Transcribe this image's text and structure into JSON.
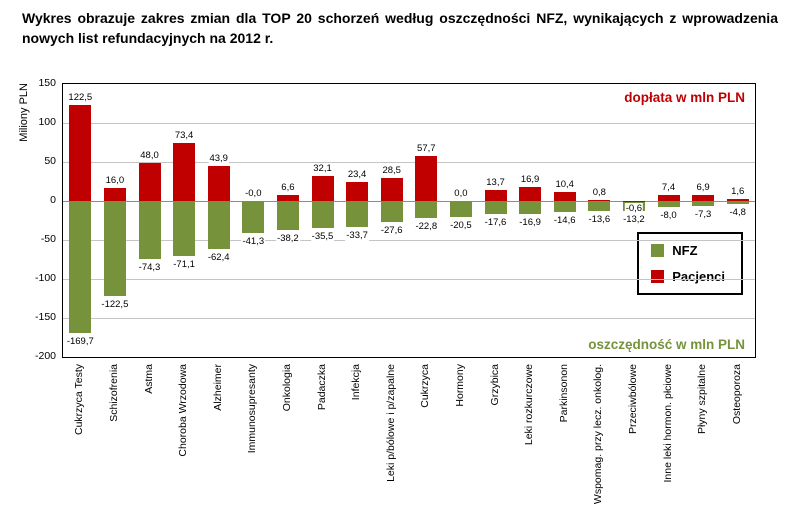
{
  "title": "Wykres obrazuje zakres zmian dla TOP 20 schorzeń według oszczędności NFZ, wynikających z wprowadzenia nowych list refundacyjnych na 2012 r.",
  "chart_data": {
    "type": "bar",
    "title": "Wykres obrazuje zakres zmian dla TOP 20 schorzeń według oszczędności NFZ, wynikających z wprowadzenia nowych list refundacyjnych na 2012 r.",
    "ylabel": "Miliony PLN",
    "ylim": [
      -200,
      150
    ],
    "ytick_step": 50,
    "grid": true,
    "legend_position": "right-middle",
    "annotations": {
      "top_right": "dopłata w mln PLN",
      "bottom_right": "oszczędność w mln PLN"
    },
    "legend": [
      {
        "name": "NFZ",
        "color": "#76933C"
      },
      {
        "name": "Pacjenci",
        "color": "#C00000"
      }
    ],
    "categories": [
      "Cukrzyca Testy",
      "Schizofrenia",
      "Astma",
      "Choroba Wrzodowa",
      "Alzheimer",
      "Immunosupresanty",
      "Onkologia",
      "Padaczka",
      "Infekcja",
      "Leki p/bólowe i p/zapalne",
      "Cukrzyca",
      "Hormony",
      "Grzybica",
      "Leki rozkurczowe",
      "Parkinsonon",
      "Wspomag. przy lecz. onkolog.",
      "Przeciwbólowe",
      "Inne leki hormon. płciowe",
      "Płyny szpitalne",
      "Osteoporoza"
    ],
    "series": [
      {
        "name": "NFZ",
        "color": "#76933C",
        "values": [
          -169.7,
          -122.5,
          -74.3,
          -71.1,
          -62.4,
          -41.3,
          -38.2,
          -35.5,
          -33.7,
          -27.6,
          -22.8,
          -20.5,
          -17.6,
          -16.9,
          -14.6,
          -13.6,
          -13.2,
          -8.0,
          -7.3,
          -4.8
        ]
      },
      {
        "name": "Pacjenci",
        "color": "#C00000",
        "values": [
          122.5,
          16.0,
          48.0,
          73.4,
          43.9,
          -0.0,
          6.6,
          32.1,
          23.4,
          28.5,
          57.7,
          0.0,
          13.7,
          16.9,
          10.4,
          0.8,
          -0.6,
          7.4,
          6.9,
          1.6
        ]
      }
    ],
    "value_labels": {
      "nfz": [
        "-169,7",
        "-122,5",
        "-74,3",
        "-71,1",
        "-62,4",
        "-41,3",
        "-38,2",
        "-35,5",
        "-33,7",
        "-27,6",
        "-22,8",
        "-20,5",
        "-17,6",
        "-16,9",
        "-14,6",
        "-13,6",
        "-13,2",
        "-8,0",
        "-7,3",
        "-4,8"
      ],
      "pacjenci": [
        "122,5",
        "16,0",
        "48,0",
        "73,4",
        "43,9",
        "-0,0",
        "6,6",
        "32,1",
        "23,4",
        "28,5",
        "57,7",
        "0,0",
        "13,7",
        "16,9",
        "10,4",
        "0,8",
        "-0,6",
        "7,4",
        "6,9",
        "1,6"
      ]
    },
    "yticks": [
      150,
      100,
      50,
      0,
      -50,
      -100,
      -150,
      -200
    ]
  }
}
